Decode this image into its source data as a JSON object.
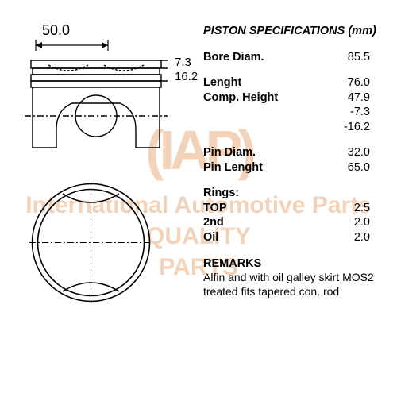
{
  "watermark": {
    "logo": "(IAP)",
    "line1": "International Automotive Parts",
    "line2": "QUALITY",
    "line3": "PARTS",
    "color": "#e8b080"
  },
  "dimensions": {
    "top_width": "50.0",
    "side_a": "7.3",
    "side_b": "16.2"
  },
  "specs": {
    "title": "PISTON SPECIFICATIONS (mm)",
    "rows": [
      {
        "label": "Bore Diam.",
        "value": "85.5"
      },
      {
        "gap": true
      },
      {
        "label": "Lenght",
        "value": "76.0"
      },
      {
        "label": "Comp. Height",
        "value": "47.9"
      },
      {
        "label": "",
        "value": "-7.3"
      },
      {
        "label": "",
        "value": "-16.2"
      },
      {
        "gap": true
      },
      {
        "label": "Pin Diam.",
        "value": "32.0"
      },
      {
        "label": "Pin Lenght",
        "value": "65.0"
      },
      {
        "gap": true
      },
      {
        "label": "Rings:",
        "value": ""
      },
      {
        "label": "TOP",
        "value": "2.5"
      },
      {
        "label": "2nd",
        "value": "2.0"
      },
      {
        "label": "Oil",
        "value": "2.0"
      }
    ],
    "remarks_title": "REMARKS",
    "remarks_text": "Alfin and with oil galley skirt MOS2 treated fits tapered con. rod"
  },
  "diagram": {
    "stroke": "#000000",
    "stroke_width": 1.4
  }
}
